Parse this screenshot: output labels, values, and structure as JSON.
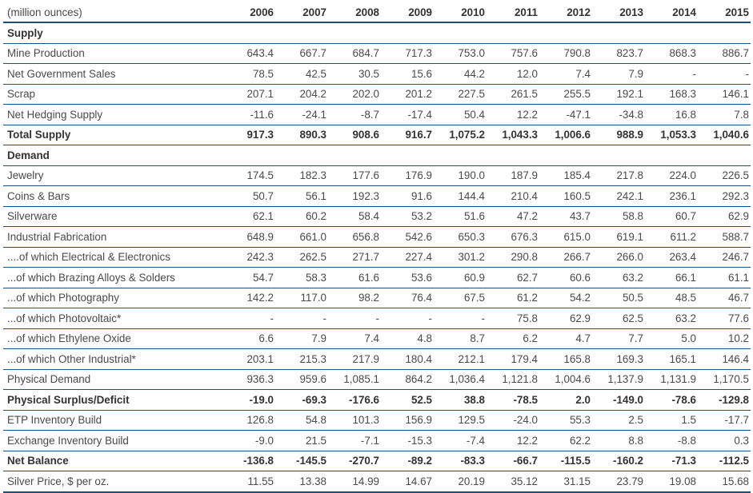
{
  "chart_data": {
    "type": "table",
    "unit_label": "(million ounces)",
    "years": [
      "2006",
      "2007",
      "2008",
      "2009",
      "2010",
      "2011",
      "2012",
      "2013",
      "2014",
      "2015"
    ],
    "rows": [
      {
        "label": "Supply",
        "section": true,
        "values": []
      },
      {
        "label": "Mine Production",
        "values": [
          "643.4",
          "667.7",
          "684.7",
          "717.3",
          "753.0",
          "757.6",
          "790.8",
          "823.7",
          "868.3",
          "886.7"
        ]
      },
      {
        "label": "Net Government Sales",
        "values": [
          "78.5",
          "42.5",
          "30.5",
          "15.6",
          "44.2",
          "12.0",
          "7.4",
          "7.9",
          "-",
          "-"
        ]
      },
      {
        "label": "Scrap",
        "values": [
          "207.1",
          "204.2",
          "202.0",
          "201.2",
          "227.5",
          "261.5",
          "255.5",
          "192.1",
          "168.3",
          "146.1"
        ]
      },
      {
        "label": "Net Hedging Supply",
        "values": [
          "-11.6",
          "-24.1",
          "-8.7",
          "-17.4",
          "50.4",
          "12.2",
          "-47.1",
          "-34.8",
          "16.8",
          "7.8"
        ]
      },
      {
        "label": "Total Supply",
        "bold": true,
        "values": [
          "917.3",
          "890.3",
          "908.6",
          "916.7",
          "1,075.2",
          "1,043.3",
          "1,006.6",
          "988.9",
          "1,053.3",
          "1,040.6"
        ]
      },
      {
        "label": "Demand",
        "section": true,
        "values": []
      },
      {
        "label": "Jewelry",
        "values": [
          "174.5",
          "182.3",
          "177.6",
          "176.9",
          "190.0",
          "187.9",
          "185.4",
          "217.8",
          "224.0",
          "226.5"
        ]
      },
      {
        "label": "Coins & Bars",
        "values": [
          "50.7",
          "56.1",
          "192.3",
          "91.6",
          "144.4",
          "210.4",
          "160.5",
          "242.1",
          "236.1",
          "292.3"
        ]
      },
      {
        "label": "Silverware",
        "values": [
          "62.1",
          "60.2",
          "58.4",
          "53.2",
          "51.6",
          "47.2",
          "43.7",
          "58.8",
          "60.7",
          "62.9"
        ]
      },
      {
        "label": "Industrial Fabrication",
        "values": [
          "648.9",
          "661.0",
          "656.8",
          "542.6",
          "650.3",
          "676.3",
          "615.0",
          "619.1",
          "611.2",
          "588.7"
        ]
      },
      {
        "label": "....of which Electrical & Electronics",
        "values": [
          "242.3",
          "262.5",
          "271.7",
          "227.4",
          "301.2",
          "290.8",
          "266.7",
          "266.0",
          "263.4",
          "246.7"
        ]
      },
      {
        "label": "...of which Brazing Alloys & Solders",
        "values": [
          "54.7",
          "58.3",
          "61.6",
          "53.6",
          "60.9",
          "62.7",
          "60.6",
          "63.2",
          "66.1",
          "61.1"
        ]
      },
      {
        "label": "...of which Photography",
        "values": [
          "142.2",
          "117.0",
          "98.2",
          "76.4",
          "67.5",
          "61.2",
          "54.2",
          "50.5",
          "48.5",
          "46.7"
        ]
      },
      {
        "label": "...of which Photovoltaic*",
        "values": [
          "-",
          "-",
          "-",
          "-",
          "-",
          "75.8",
          "62.9",
          "62.5",
          "63.2",
          "77.6"
        ]
      },
      {
        "label": "...of which Ethylene Oxide",
        "values": [
          "6.6",
          "7.9",
          "7.4",
          "4.8",
          "8.7",
          "6.2",
          "4.7",
          "7.7",
          "5.0",
          "10.2"
        ]
      },
      {
        "label": "...of which Other Industrial*",
        "values": [
          "203.1",
          "215.3",
          "217.9",
          "180.4",
          "212.1",
          "179.4",
          "165.8",
          "169.3",
          "165.1",
          "146.4"
        ]
      },
      {
        "label": "Physical Demand",
        "values": [
          "936.3",
          "959.6",
          "1,085.1",
          "864.2",
          "1,036.4",
          "1,121.8",
          "1,004.6",
          "1,137.9",
          "1,131.9",
          "1,170.5"
        ]
      },
      {
        "label": "Physical Surplus/Deficit",
        "bold": true,
        "values": [
          "-19.0",
          "-69.3",
          "-176.6",
          "52.5",
          "38.8",
          "-78.5",
          "2.0",
          "-149.0",
          "-78.6",
          "-129.8"
        ]
      },
      {
        "label": "ETP Inventory Build",
        "values": [
          "126.8",
          "54.8",
          "101.3",
          "156.9",
          "129.5",
          "-24.0",
          "55.3",
          "2.5",
          "1.5",
          "-17.7"
        ]
      },
      {
        "label": "Exchange Inventory Build",
        "values": [
          "-9.0",
          "21.5",
          "-7.1",
          "-15.3",
          "-7.4",
          "12.2",
          "62.2",
          "8.8",
          "-8.8",
          "0.3"
        ]
      },
      {
        "label": "Net Balance",
        "bold": true,
        "values": [
          "-136.8",
          "-145.5",
          "-270.7",
          "-89.2",
          "-83.3",
          "-66.7",
          "-115.5",
          "-160.2",
          "-71.3",
          "-112.5"
        ]
      },
      {
        "label": "Silver Price, $ per oz.",
        "values": [
          "11.55",
          "13.38",
          "14.99",
          "14.67",
          "20.19",
          "35.12",
          "31.15",
          "23.79",
          "19.08",
          "15.68"
        ]
      }
    ]
  }
}
